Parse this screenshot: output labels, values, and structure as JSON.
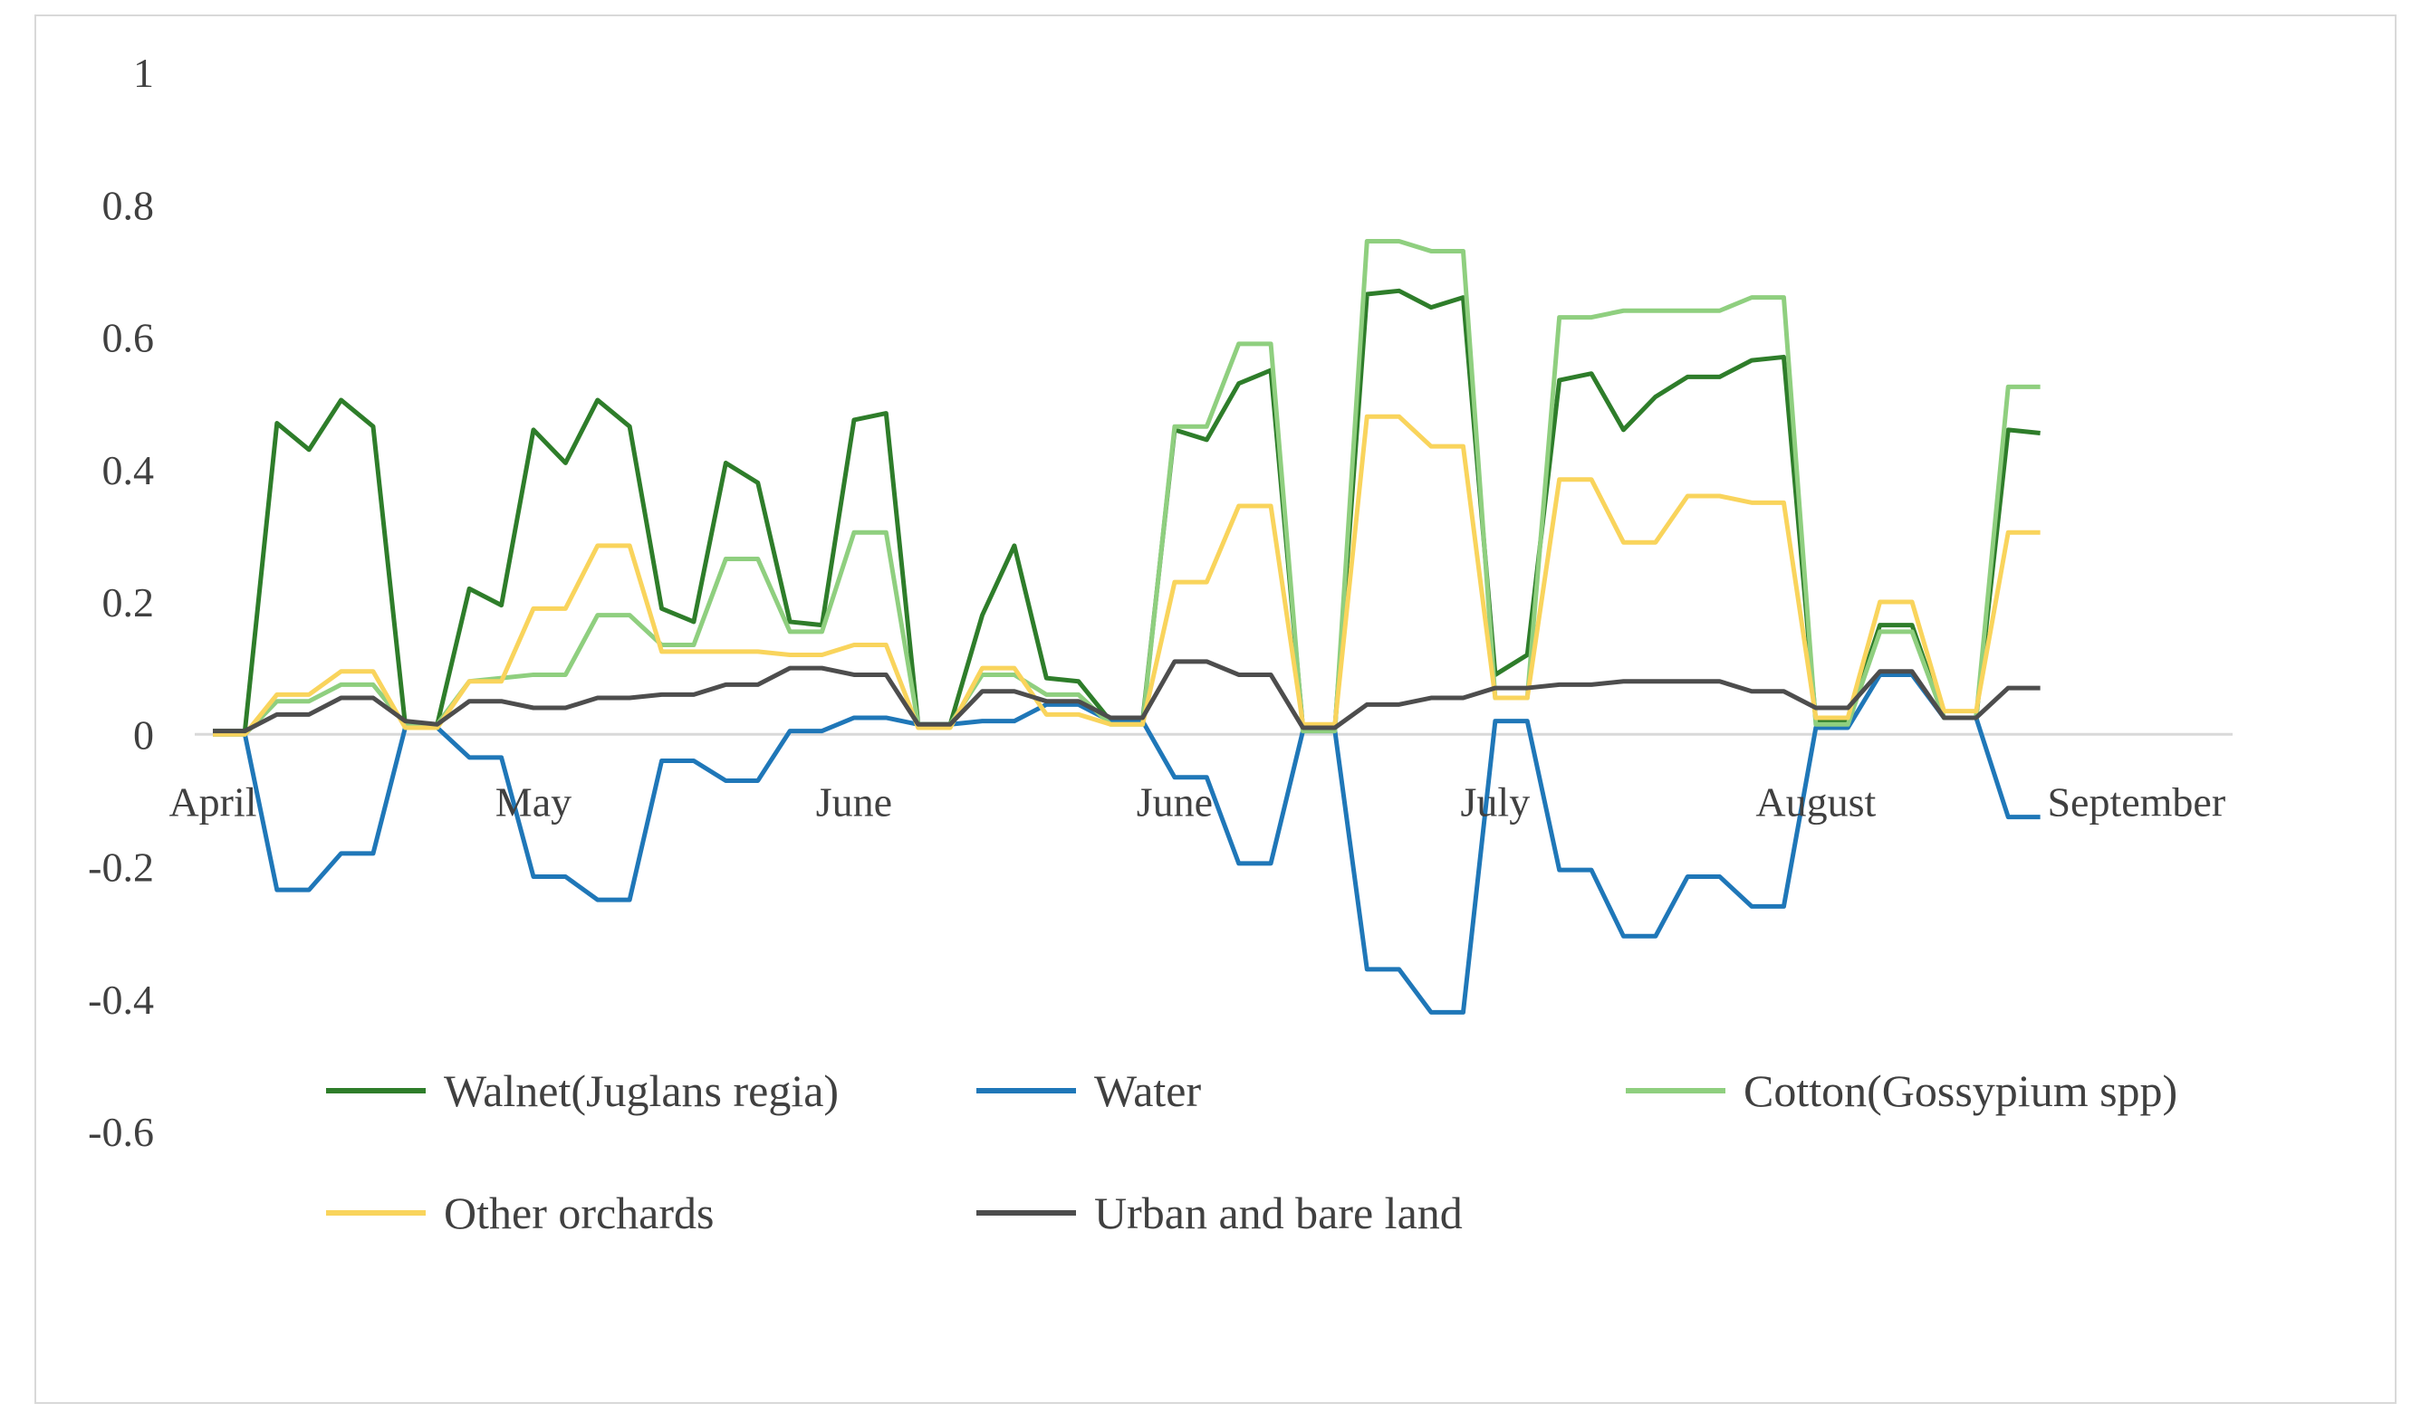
{
  "chart_data": {
    "type": "line",
    "title": "",
    "xlabel": "",
    "ylabel": "",
    "ylim": [
      -0.6,
      1
    ],
    "yticks": [
      "1",
      "0.8",
      "0.6",
      "0.4",
      "0.2",
      "0",
      "-0.2",
      "-0.4",
      "-0.6"
    ],
    "yvalues": [
      1,
      0.8,
      0.6,
      0.4,
      0.2,
      0,
      -0.2,
      -0.4,
      -0.6
    ],
    "month_labels": [
      {
        "label": "April",
        "x": 0
      },
      {
        "label": "May",
        "x": 10
      },
      {
        "label": "June",
        "x": 20
      },
      {
        "label": "June",
        "x": 30
      },
      {
        "label": "July",
        "x": 40
      },
      {
        "label": "August",
        "x": 50
      },
      {
        "label": "September",
        "x": 60
      }
    ],
    "x_max": 63,
    "series": [
      {
        "name": "Walnet(Juglans regia)",
        "color": "#2e7d2a",
        "values": [
          0.005,
          0.005,
          0.47,
          0.43,
          0.505,
          0.465,
          0.015,
          0.015,
          0.22,
          0.195,
          0.46,
          0.41,
          0.505,
          0.465,
          0.19,
          0.17,
          0.41,
          0.38,
          0.17,
          0.165,
          0.475,
          0.485,
          0.015,
          0.015,
          0.18,
          0.285,
          0.085,
          0.08,
          0.02,
          0.02,
          0.46,
          0.445,
          0.53,
          0.55,
          0.01,
          0.01,
          0.665,
          0.67,
          0.645,
          0.66,
          0.09,
          0.12,
          0.535,
          0.545,
          0.46,
          0.51,
          0.54,
          0.54,
          0.565,
          0.57,
          0.02,
          0.02,
          0.165,
          0.165,
          0.025,
          0.025,
          0.46,
          0.455
        ]
      },
      {
        "name": "Water",
        "color": "#1f77b8",
        "values": [
          0.0,
          0.0,
          -0.235,
          -0.235,
          -0.18,
          -0.18,
          0.01,
          0.01,
          -0.035,
          -0.035,
          -0.215,
          -0.215,
          -0.25,
          -0.25,
          -0.04,
          -0.04,
          -0.07,
          -0.07,
          0.005,
          0.005,
          0.025,
          0.025,
          0.015,
          0.015,
          0.02,
          0.02,
          0.045,
          0.045,
          0.02,
          0.02,
          -0.065,
          -0.065,
          -0.195,
          -0.195,
          0.005,
          0.005,
          -0.355,
          -0.355,
          -0.42,
          -0.42,
          0.02,
          0.02,
          -0.205,
          -0.205,
          -0.305,
          -0.305,
          -0.215,
          -0.215,
          -0.26,
          -0.26,
          0.01,
          0.01,
          0.09,
          0.09,
          0.025,
          0.025,
          -0.125,
          -0.125
        ]
      },
      {
        "name": "Cotton(Gossypium spp)",
        "color": "#8fcf7f",
        "values": [
          0.0,
          0.0,
          0.05,
          0.05,
          0.075,
          0.075,
          0.015,
          0.015,
          0.08,
          0.085,
          0.09,
          0.09,
          0.18,
          0.18,
          0.135,
          0.135,
          0.265,
          0.265,
          0.155,
          0.155,
          0.305,
          0.305,
          0.015,
          0.015,
          0.09,
          0.09,
          0.06,
          0.06,
          0.015,
          0.015,
          0.465,
          0.465,
          0.59,
          0.59,
          0.005,
          0.005,
          0.745,
          0.745,
          0.73,
          0.73,
          0.055,
          0.055,
          0.63,
          0.63,
          0.64,
          0.64,
          0.64,
          0.64,
          0.66,
          0.66,
          0.015,
          0.015,
          0.155,
          0.155,
          0.025,
          0.025,
          0.525,
          0.525
        ]
      },
      {
        "name": "Other orchards",
        "color": "#f9d45c",
        "values": [
          0.0,
          0.0,
          0.06,
          0.06,
          0.095,
          0.095,
          0.01,
          0.01,
          0.08,
          0.08,
          0.19,
          0.19,
          0.285,
          0.285,
          0.125,
          0.125,
          0.125,
          0.125,
          0.12,
          0.12,
          0.135,
          0.135,
          0.01,
          0.01,
          0.1,
          0.1,
          0.03,
          0.03,
          0.015,
          0.015,
          0.23,
          0.23,
          0.345,
          0.345,
          0.015,
          0.015,
          0.48,
          0.48,
          0.435,
          0.435,
          0.055,
          0.055,
          0.385,
          0.385,
          0.29,
          0.29,
          0.36,
          0.36,
          0.35,
          0.35,
          0.025,
          0.025,
          0.2,
          0.2,
          0.035,
          0.035,
          0.305,
          0.305
        ]
      },
      {
        "name": "Urban and bare land",
        "color": "#4d4d4d",
        "values": [
          0.005,
          0.005,
          0.03,
          0.03,
          0.055,
          0.055,
          0.02,
          0.015,
          0.05,
          0.05,
          0.04,
          0.04,
          0.055,
          0.055,
          0.06,
          0.06,
          0.075,
          0.075,
          0.1,
          0.1,
          0.09,
          0.09,
          0.015,
          0.015,
          0.065,
          0.065,
          0.05,
          0.05,
          0.025,
          0.025,
          0.11,
          0.11,
          0.09,
          0.09,
          0.01,
          0.01,
          0.045,
          0.045,
          0.055,
          0.055,
          0.07,
          0.07,
          0.075,
          0.075,
          0.08,
          0.08,
          0.08,
          0.08,
          0.065,
          0.065,
          0.04,
          0.04,
          0.095,
          0.095,
          0.025,
          0.025,
          0.07,
          0.07
        ]
      }
    ],
    "legend": {
      "position": "bottom",
      "items": [
        "Walnet(Juglans regia)",
        "Water",
        "Cotton(Gossypium spp)",
        "Other orchards",
        "Urban and bare land"
      ]
    },
    "grid": false
  }
}
